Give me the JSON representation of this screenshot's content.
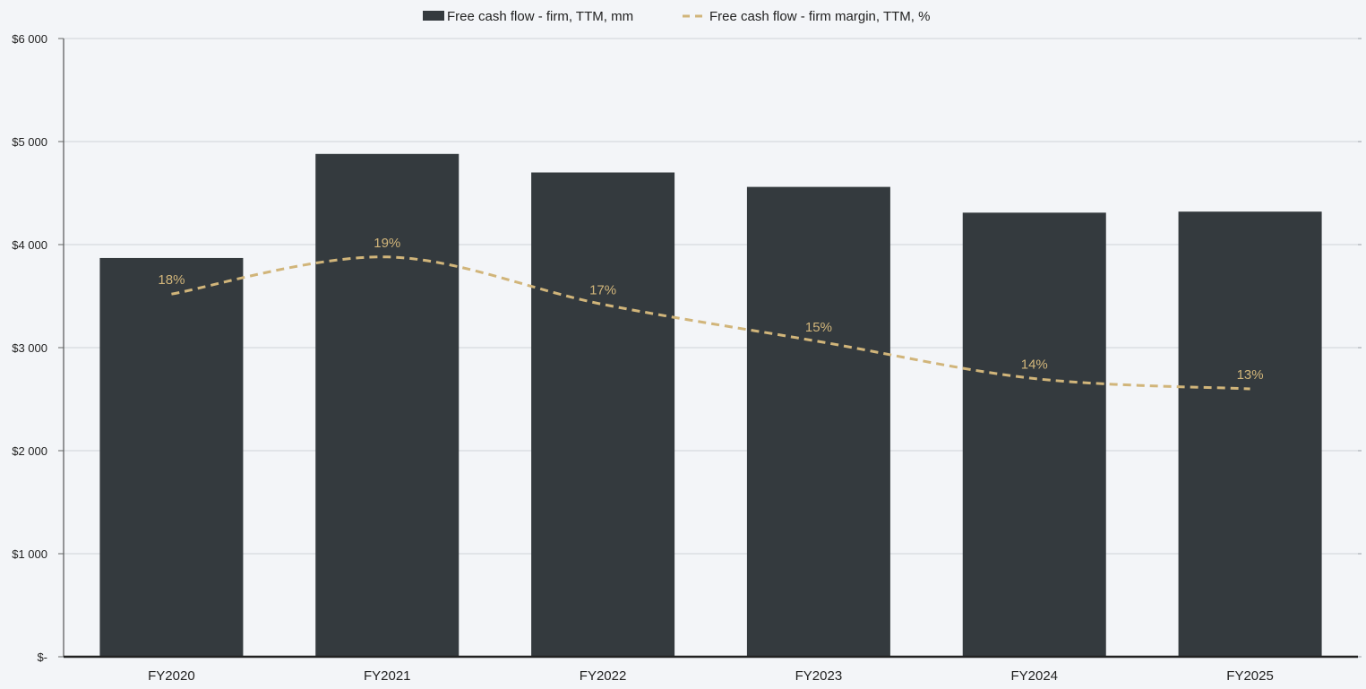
{
  "chart_data": {
    "type": "bar",
    "title": "",
    "xlabel": "",
    "ylabel": "",
    "categories": [
      "FY2020",
      "FY2021",
      "FY2022",
      "FY2023",
      "FY2024",
      "FY2025"
    ],
    "ylim": [
      0,
      6000
    ],
    "y_ticks": [
      0,
      1000,
      2000,
      3000,
      4000,
      5000,
      6000
    ],
    "y_tick_labels": [
      "$-",
      "$1 000",
      "$2 000",
      "$3 000",
      "$4 000",
      "$5 000",
      "$6 000"
    ],
    "secondary_ylim": [
      0,
      30
    ],
    "grid": true,
    "legend_position": "top-center",
    "series": [
      {
        "name": "Free cash flow - firm, TTM, mm",
        "type": "bar",
        "axis": "primary",
        "color": "#343a3e",
        "values": [
          3870,
          4880,
          4700,
          4560,
          4310,
          4320
        ]
      },
      {
        "name": "Free cash flow - firm margin, TTM, %",
        "type": "line",
        "style": "dashed-smooth",
        "axis": "secondary",
        "color": "#d1b57a",
        "values": [
          17.6,
          19.4,
          17.1,
          15.3,
          13.5,
          13.0
        ],
        "data_labels": [
          "18%",
          "19%",
          "17%",
          "15%",
          "14%",
          "13%"
        ]
      }
    ]
  }
}
